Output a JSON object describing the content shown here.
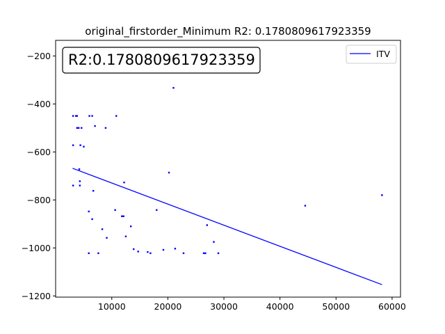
{
  "chart_data": {
    "type": "scatter",
    "title": "original_firstorder_Minimum R2: 0.1780809617923359",
    "annotation": "R2:0.1780809617923359",
    "xlabel": "",
    "ylabel": "",
    "xlim": [
      -20,
      61500
    ],
    "ylim": [
      -1205,
      -135
    ],
    "x_ticks": [
      10000,
      20000,
      30000,
      40000,
      50000,
      60000
    ],
    "y_ticks": [
      -1200,
      -1000,
      -800,
      -600,
      -400,
      -200
    ],
    "grid": false,
    "legend_position": "top-right",
    "legend": [
      "ITV"
    ],
    "series": [
      {
        "name": "ITV",
        "kind": "line",
        "color": "#0000ff",
        "x": [
          3000,
          58200
        ],
        "y": [
          -668,
          -1153
        ]
      },
      {
        "kind": "scatter",
        "color": "#0000ff",
        "points": [
          [
            21000,
            -333
          ],
          [
            3100,
            -450
          ],
          [
            3600,
            -450
          ],
          [
            3800,
            -450
          ],
          [
            6000,
            -450
          ],
          [
            6500,
            -450
          ],
          [
            10800,
            -450
          ],
          [
            3800,
            -500
          ],
          [
            4100,
            -500
          ],
          [
            4600,
            -500
          ],
          [
            7000,
            -492
          ],
          [
            8900,
            -500
          ],
          [
            3100,
            -572
          ],
          [
            4400,
            -572
          ],
          [
            5000,
            -578
          ],
          [
            4200,
            -672
          ],
          [
            20200,
            -686
          ],
          [
            4300,
            -722
          ],
          [
            12200,
            -727
          ],
          [
            3100,
            -740
          ],
          [
            4300,
            -740
          ],
          [
            6700,
            -762
          ],
          [
            44500,
            -824
          ],
          [
            58200,
            -780
          ],
          [
            10600,
            -842
          ],
          [
            18000,
            -842
          ],
          [
            5900,
            -848
          ],
          [
            11800,
            -868
          ],
          [
            12100,
            -868
          ],
          [
            6500,
            -880
          ],
          [
            13400,
            -910
          ],
          [
            27000,
            -905
          ],
          [
            8300,
            -922
          ],
          [
            12500,
            -952
          ],
          [
            9100,
            -958
          ],
          [
            28200,
            -975
          ],
          [
            13900,
            -1005
          ],
          [
            14700,
            -1015
          ],
          [
            19200,
            -1008
          ],
          [
            21300,
            -1003
          ],
          [
            5900,
            -1022
          ],
          [
            7600,
            -1022
          ],
          [
            16400,
            -1017
          ],
          [
            16900,
            -1022
          ],
          [
            22800,
            -1022
          ],
          [
            26400,
            -1022
          ],
          [
            26700,
            -1022
          ],
          [
            29000,
            -1022
          ]
        ]
      }
    ]
  }
}
